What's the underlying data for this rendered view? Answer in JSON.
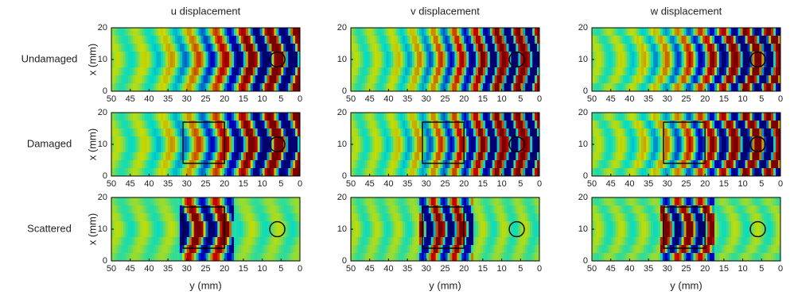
{
  "chart_data": {
    "type": "heatmap",
    "columns": [
      "u displacement",
      "v displacement",
      "w displacement"
    ],
    "rows": [
      {
        "label": "Undamaged",
        "damage_box": false
      },
      {
        "label": "Damaged",
        "damage_box": true
      },
      {
        "label": "Scattered",
        "damage_box": true
      }
    ],
    "xlabel": "y (mm)",
    "ylabel": "x (mm)",
    "xlim": [
      50,
      0
    ],
    "xticks": [
      50,
      45,
      40,
      35,
      30,
      25,
      20,
      15,
      10,
      5,
      0
    ],
    "ylim": [
      0,
      20
    ],
    "yticks": [
      0,
      10,
      20
    ],
    "box": {
      "x": [
        31,
        20
      ],
      "y": [
        4,
        17
      ]
    },
    "circle": {
      "x": 6,
      "y": 10,
      "r": 2
    }
  }
}
